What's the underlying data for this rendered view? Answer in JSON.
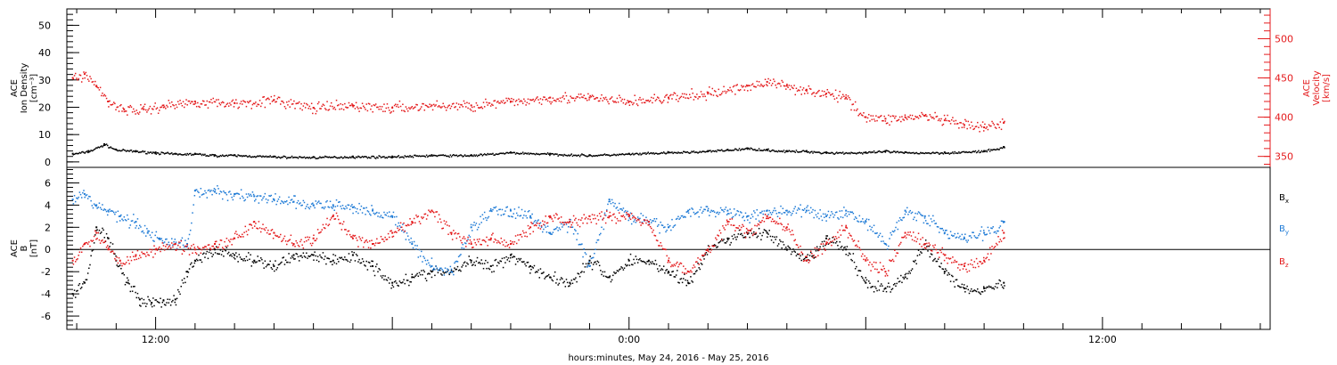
{
  "colors": {
    "black": "#000000",
    "red": "#e41a1c",
    "blue": "#1f7bd6"
  },
  "xlabel": "hours:minutes, May 24, 2016 - May 25, 2016",
  "chart_data": [
    {
      "type": "scatter",
      "panel": "top",
      "ylabel_left": [
        "ACE",
        "Ion Density",
        "[cm⁻³]"
      ],
      "ylabel_right": [
        "ACE",
        "Velocity",
        "[km/s]"
      ],
      "x_tick_labels": [
        "12:00",
        "0:00",
        "12:00"
      ],
      "x_tick_hours": [
        12,
        24,
        36
      ],
      "x_range_hours": [
        9.75,
        40.25
      ],
      "ylim_left": [
        -2,
        56
      ],
      "yticks_left": [
        0,
        10,
        20,
        30,
        40,
        50
      ],
      "ylim_right": [
        336,
        538
      ],
      "yticks_right": [
        350,
        400,
        450,
        500
      ],
      "series": [
        {
          "name": "Ion Density",
          "axis": "left",
          "color": "black",
          "x_hours": [
            9.9,
            10.3,
            10.7,
            11.0,
            11.5,
            12.0,
            12.5,
            13.0,
            13.5,
            14.0,
            15.0,
            16.0,
            17.0,
            18.0,
            19.0,
            20.0,
            21.0,
            22.0,
            23.0,
            24.0,
            25.0,
            26.0,
            26.5,
            27.0,
            27.5,
            28.0,
            28.5,
            29.0,
            30.0,
            30.5,
            31.0,
            32.0,
            33.0,
            33.5
          ],
          "values": [
            3.0,
            4.0,
            6.5,
            4.5,
            4.0,
            3.5,
            3.0,
            3.0,
            2.5,
            2.5,
            2.0,
            1.8,
            2.0,
            2.0,
            2.5,
            2.5,
            3.5,
            3.0,
            2.5,
            3.0,
            3.5,
            4.0,
            4.5,
            5.0,
            4.5,
            4.0,
            4.0,
            3.5,
            3.5,
            4.0,
            3.5,
            3.5,
            4.0,
            5.5
          ]
        },
        {
          "name": "Velocity",
          "axis": "right",
          "color": "red",
          "x_hours": [
            9.9,
            10.2,
            10.5,
            10.8,
            11.2,
            11.7,
            12.2,
            13.0,
            14.0,
            15.0,
            16.0,
            17.0,
            18.0,
            19.0,
            20.0,
            21.0,
            22.0,
            23.0,
            24.0,
            25.0,
            26.0,
            27.0,
            27.5,
            28.0,
            28.5,
            29.0,
            29.5,
            30.0,
            30.5,
            31.0,
            31.5,
            32.0,
            32.5,
            33.0,
            33.5
          ],
          "values": [
            450,
            455,
            440,
            420,
            410,
            410,
            415,
            420,
            418,
            422,
            412,
            415,
            412,
            415,
            415,
            420,
            425,
            425,
            420,
            425,
            430,
            440,
            445,
            440,
            435,
            430,
            425,
            400,
            398,
            400,
            402,
            396,
            390,
            387,
            393
          ]
        }
      ]
    },
    {
      "type": "scatter",
      "panel": "bottom",
      "ylabel_left": [
        "ACE",
        "B",
        "[nT]"
      ],
      "x_tick_labels": [
        "12:00",
        "0:00",
        "12:00"
      ],
      "x_tick_hours": [
        12,
        24,
        36
      ],
      "x_range_hours": [
        9.75,
        40.25
      ],
      "ylim_left": [
        -7.2,
        7.4
      ],
      "yticks_left": [
        -6,
        -4,
        -2,
        0,
        2,
        4,
        6
      ],
      "legend_position": "right",
      "series": [
        {
          "name": "Bx",
          "color": "black",
          "x_hours": [
            9.9,
            10.2,
            10.5,
            10.8,
            11.0,
            11.3,
            11.6,
            11.9,
            12.2,
            12.5,
            12.8,
            13.0,
            13.5,
            14.0,
            14.5,
            15.0,
            15.5,
            16.0,
            16.5,
            17.0,
            17.5,
            18.0,
            18.5,
            19.0,
            19.5,
            20.0,
            20.5,
            21.0,
            21.5,
            22.0,
            22.5,
            23.0,
            23.5,
            24.0,
            24.5,
            25.0,
            25.5,
            26.0,
            26.5,
            27.0,
            27.5,
            28.0,
            28.5,
            29.0,
            29.5,
            30.0,
            30.5,
            31.0,
            31.5,
            32.0,
            32.5,
            33.0,
            33.5
          ],
          "values": [
            -4.0,
            -3.0,
            2.0,
            1.0,
            -1.0,
            -3.0,
            -4.5,
            -4.8,
            -4.6,
            -4.5,
            -2.0,
            -1.0,
            0.0,
            -0.5,
            -1.0,
            -1.5,
            -0.5,
            -0.5,
            -1.0,
            -0.5,
            -1.5,
            -3.0,
            -2.5,
            -2.0,
            -2.0,
            -1.0,
            -1.5,
            -0.5,
            -1.5,
            -2.5,
            -3.0,
            -1.0,
            -2.5,
            -1.0,
            -1.0,
            -2.0,
            -3.0,
            0.0,
            1.0,
            1.5,
            1.5,
            0.0,
            -1.0,
            1.0,
            0.0,
            -3.0,
            -3.5,
            -2.5,
            0.5,
            -2.0,
            -3.5,
            -3.5,
            -3.0
          ]
        },
        {
          "name": "By",
          "color": "blue",
          "x_hours": [
            9.9,
            10.2,
            10.5,
            10.8,
            11.1,
            11.5,
            11.8,
            12.1,
            12.5,
            12.8,
            13.0,
            13.5,
            14.0,
            14.5,
            15.0,
            15.5,
            16.0,
            16.5,
            17.0,
            17.5,
            18.0,
            18.5,
            19.0,
            19.5,
            20.0,
            20.5,
            21.0,
            21.5,
            22.0,
            22.5,
            23.0,
            23.5,
            24.0,
            24.5,
            25.0,
            25.5,
            26.0,
            26.5,
            27.0,
            27.5,
            28.0,
            28.5,
            29.0,
            29.5,
            30.0,
            30.5,
            31.0,
            31.5,
            32.0,
            32.5,
            33.0,
            33.5
          ],
          "values": [
            4.5,
            5.0,
            4.0,
            3.5,
            3.0,
            2.5,
            1.5,
            1.0,
            0.5,
            0.5,
            5.3,
            5.2,
            5.0,
            4.8,
            4.5,
            4.3,
            4.0,
            4.0,
            3.8,
            3.5,
            3.0,
            0.5,
            -1.5,
            -2.0,
            2.0,
            3.5,
            3.5,
            3.0,
            1.5,
            2.5,
            -1.5,
            4.5,
            3.0,
            2.5,
            2.0,
            3.5,
            3.5,
            3.5,
            3.0,
            3.5,
            3.5,
            3.5,
            3.0,
            3.5,
            2.5,
            0.5,
            3.5,
            3.0,
            1.5,
            1.0,
            1.5,
            2.5
          ]
        },
        {
          "name": "Bz",
          "color": "red",
          "x_hours": [
            9.9,
            10.2,
            10.5,
            10.8,
            11.1,
            11.5,
            12.0,
            12.5,
            13.0,
            13.5,
            14.0,
            14.5,
            15.0,
            15.5,
            16.0,
            16.5,
            17.0,
            17.5,
            18.0,
            18.5,
            19.0,
            19.5,
            20.0,
            20.5,
            21.0,
            21.5,
            22.0,
            22.5,
            23.0,
            23.5,
            24.0,
            24.5,
            25.0,
            25.5,
            26.0,
            26.5,
            27.0,
            27.5,
            28.0,
            28.5,
            29.0,
            29.5,
            30.0,
            30.5,
            31.0,
            31.5,
            32.0,
            32.5,
            33.0,
            33.5
          ],
          "values": [
            -1.0,
            0.5,
            1.5,
            0.0,
            -1.0,
            -0.5,
            0.0,
            0.5,
            0.0,
            0.5,
            1.0,
            2.5,
            1.5,
            0.5,
            1.0,
            3.0,
            1.0,
            0.5,
            1.5,
            2.5,
            3.5,
            1.5,
            0.5,
            1.0,
            0.5,
            2.0,
            3.0,
            2.5,
            3.0,
            3.0,
            3.0,
            2.5,
            -1.0,
            -2.0,
            0.0,
            2.5,
            1.5,
            3.0,
            2.0,
            -1.0,
            0.5,
            2.0,
            -1.0,
            -2.0,
            1.5,
            0.5,
            -0.5,
            -1.5,
            -1.0,
            1.5
          ]
        }
      ]
    }
  ]
}
